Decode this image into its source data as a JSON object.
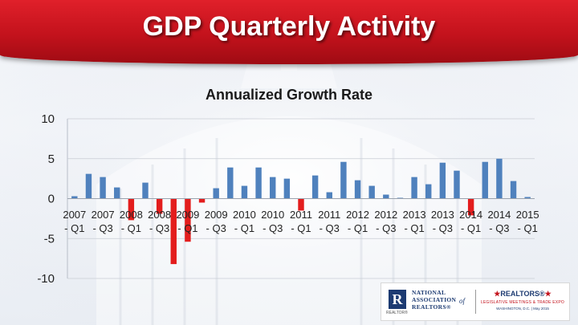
{
  "slide": {
    "title": "GDP Quarterly Activity"
  },
  "chart_data": {
    "type": "bar",
    "title": "Annualized Growth Rate",
    "xlabel": "",
    "ylabel": "",
    "ylim": [
      -10,
      10
    ],
    "yticks": [
      10,
      5,
      0,
      -5,
      -10
    ],
    "grid": true,
    "categories": [
      "2007 - Q1",
      "2007 - Q2",
      "2007 - Q3",
      "2007 - Q4",
      "2008 - Q1",
      "2008 - Q2",
      "2008 - Q3",
      "2008 - Q4",
      "2009 - Q1",
      "2009 - Q2",
      "2009 - Q3",
      "2009 - Q4",
      "2010 - Q1",
      "2010 - Q2",
      "2010 - Q3",
      "2010 - Q4",
      "2011 - Q1",
      "2011 - Q2",
      "2011 - Q3",
      "2011 - Q4",
      "2012 - Q1",
      "2012 - Q2",
      "2012 - Q3",
      "2012 - Q4",
      "2013 - Q1",
      "2013 - Q2",
      "2013 - Q3",
      "2013 - Q4",
      "2014 - Q1",
      "2014 - Q2",
      "2014 - Q3",
      "2014 - Q4",
      "2015 - Q1"
    ],
    "values": [
      0.3,
      3.1,
      2.7,
      1.4,
      -2.7,
      2.0,
      -1.9,
      -8.2,
      -5.4,
      -0.5,
      1.3,
      3.9,
      1.6,
      3.9,
      2.7,
      2.5,
      -1.5,
      2.9,
      0.8,
      4.6,
      2.3,
      1.6,
      0.5,
      0.1,
      2.7,
      1.8,
      4.5,
      3.5,
      -2.1,
      4.6,
      5.0,
      2.2,
      0.2
    ],
    "x_tick_labels": [
      [
        "2007",
        "- Q1"
      ],
      [
        "2007",
        "- Q3"
      ],
      [
        "2008",
        "- Q1"
      ],
      [
        "2008",
        "- Q3"
      ],
      [
        "2009",
        "- Q1"
      ],
      [
        "2009",
        "- Q3"
      ],
      [
        "2010",
        "- Q1"
      ],
      [
        "2010",
        "- Q3"
      ],
      [
        "2011",
        "- Q1"
      ],
      [
        "2011",
        "- Q3"
      ],
      [
        "2012",
        "- Q1"
      ],
      [
        "2012",
        "- Q3"
      ],
      [
        "2013",
        "- Q1"
      ],
      [
        "2013",
        "- Q3"
      ],
      [
        "2014",
        "- Q1"
      ],
      [
        "2014",
        "- Q3"
      ],
      [
        "2015",
        "- Q1"
      ]
    ],
    "colors": {
      "positive": "#4f81bd",
      "negative": "#e31d1d"
    }
  },
  "logos": {
    "nar_lines": [
      "NATIONAL",
      "ASSOCIATION",
      "REALTORS®"
    ],
    "nar_of": "of",
    "nar_r": "R",
    "nar_r_caption": "REALTOR®",
    "realtors_brand": "REALTORS®",
    "meetings_line": "LEGISLATIVE MEETINGS & TRADE EXPO",
    "meetings_sub": "WASHINGTON, D.C. | May 2015"
  }
}
